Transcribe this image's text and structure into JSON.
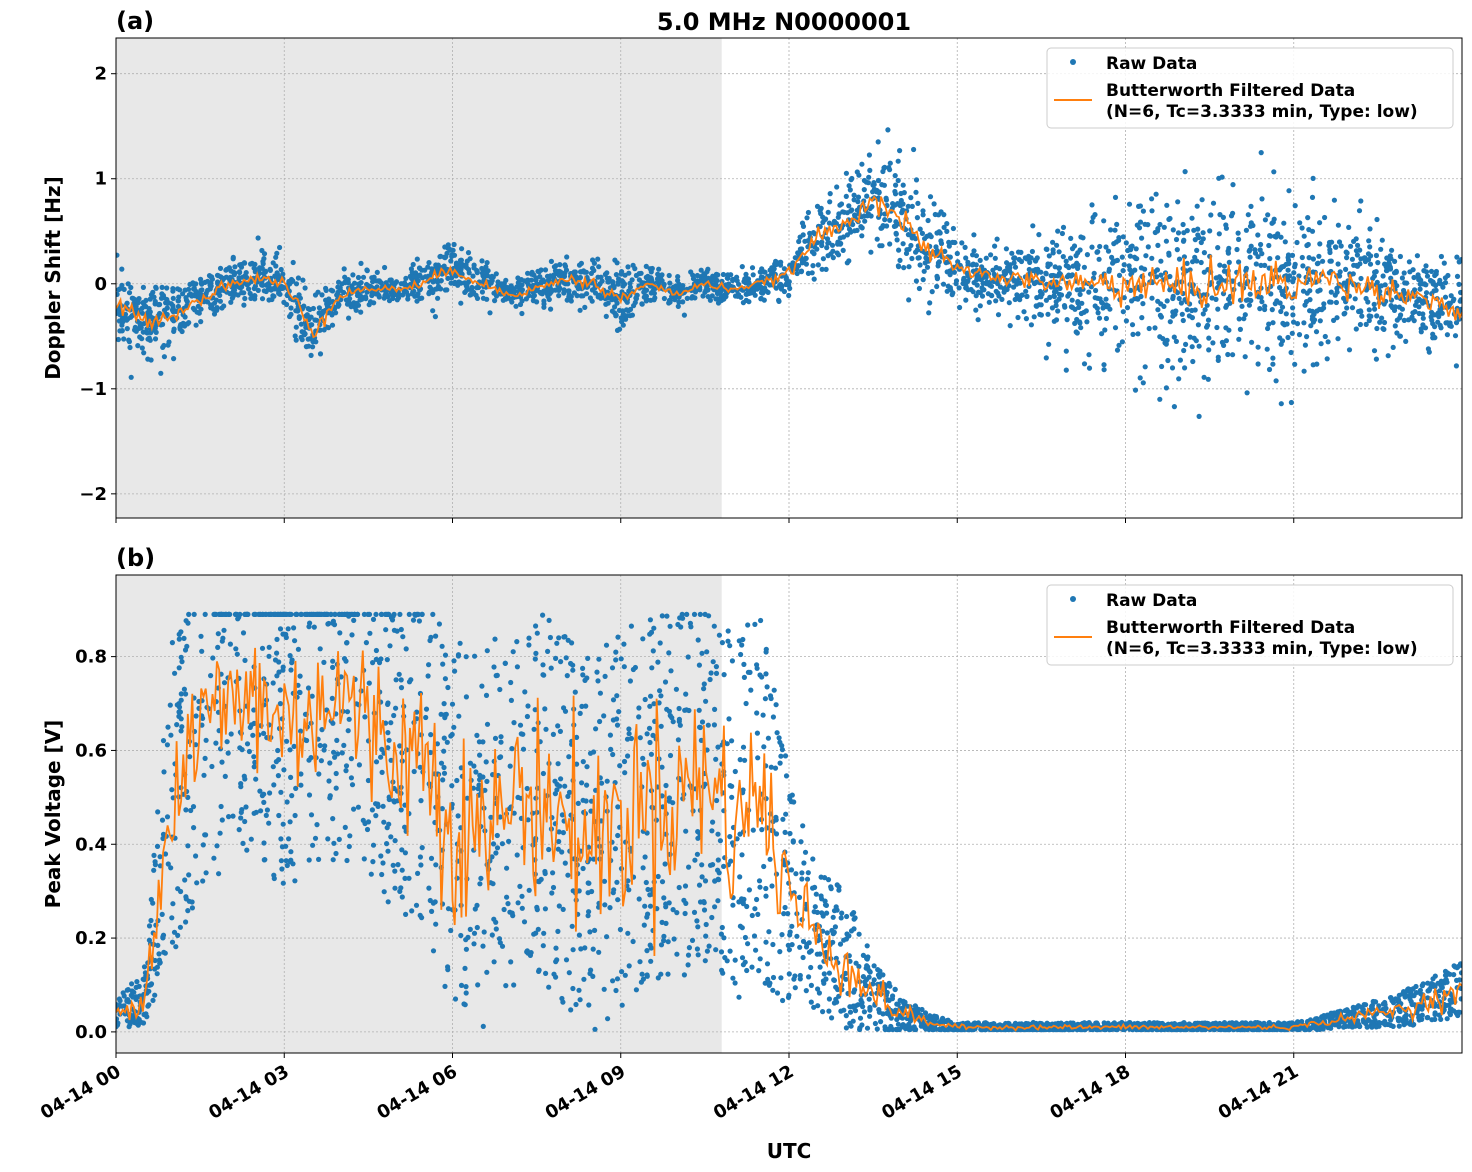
{
  "title": "5.0 MHz N0000001",
  "chart_data": [
    {
      "type": "scatter",
      "panel_label": "(a)",
      "ylabel": "Doppler Shift [Hz]",
      "xlabel": "",
      "ylim": [
        -2.23,
        2.34
      ],
      "yticks": [
        2,
        1,
        0,
        -1,
        -2
      ],
      "ytick_labels": [
        "2",
        "1",
        "0",
        "−1",
        "−2"
      ],
      "xlim_hours": [
        0,
        24
      ],
      "shaded_until_hours": 10.8,
      "grid": true,
      "legend": {
        "position": "top-right",
        "entries": [
          "Raw Data",
          "Butterworth Filtered Data",
          "(N=6, Tc=3.3333 min, Type: low)"
        ]
      },
      "filtered_hours_step": 0.5,
      "filtered": [
        -0.2,
        -0.35,
        -0.3,
        -0.15,
        0.0,
        0.05,
        0.0,
        -0.45,
        -0.1,
        -0.05,
        -0.05,
        0.0,
        0.15,
        0.0,
        -0.1,
        -0.05,
        0.05,
        0.0,
        -0.15,
        0.0,
        -0.1,
        0.0,
        -0.05,
        0.0,
        0.1,
        0.45,
        0.55,
        0.85,
        0.6,
        0.3,
        0.15,
        0.08,
        0.05,
        0.02,
        0.0,
        0.0,
        0.0,
        0.0,
        -0.05,
        0.0,
        0.0,
        0.0,
        0.0,
        0.05,
        0.0,
        -0.05,
        -0.1,
        -0.15,
        -0.3
      ],
      "raw_spread": [
        0.35,
        0.35,
        0.3,
        0.25,
        0.2,
        0.25,
        0.3,
        0.4,
        0.2,
        0.15,
        0.15,
        0.2,
        0.25,
        0.2,
        0.15,
        0.2,
        0.2,
        0.25,
        0.3,
        0.15,
        0.15,
        0.15,
        0.15,
        0.15,
        0.2,
        0.3,
        0.4,
        0.45,
        0.5,
        0.4,
        0.3,
        0.3,
        0.3,
        0.4,
        0.6,
        0.7,
        0.8,
        0.9,
        0.95,
        0.95,
        0.9,
        0.9,
        0.85,
        0.7,
        0.6,
        0.5,
        0.45,
        0.45,
        0.5
      ],
      "series_colors": {
        "raw": "#1f77b4",
        "filtered": "#ff7f0e"
      }
    },
    {
      "type": "scatter",
      "panel_label": "(b)",
      "ylabel": "Peak Voltage [V]",
      "xlabel": "UTC",
      "ylim": [
        -0.045,
        0.974
      ],
      "yticks": [
        0.8,
        0.6,
        0.4,
        0.2,
        0.0
      ],
      "ytick_labels": [
        "0.8",
        "0.6",
        "0.4",
        "0.2",
        "0.0"
      ],
      "xlim_hours": [
        0,
        24
      ],
      "xtick_hours": [
        0,
        3,
        6,
        9,
        12,
        15,
        18,
        21
      ],
      "xtick_labels": [
        "04-14 00",
        "04-14 03",
        "04-14 06",
        "04-14 09",
        "04-14 12",
        "04-14 15",
        "04-14 18",
        "04-14 21"
      ],
      "shaded_until_hours": 10.8,
      "grid": true,
      "legend": {
        "position": "top-right",
        "entries": [
          "Raw Data",
          "Butterworth Filtered Data",
          "(N=6, Tc=3.3333 min, Type: low)"
        ]
      },
      "filtered_hours_step": 0.5,
      "filtered": [
        0.04,
        0.07,
        0.5,
        0.65,
        0.7,
        0.72,
        0.65,
        0.7,
        0.72,
        0.65,
        0.6,
        0.6,
        0.45,
        0.4,
        0.5,
        0.5,
        0.45,
        0.4,
        0.45,
        0.5,
        0.5,
        0.55,
        0.45,
        0.5,
        0.3,
        0.2,
        0.15,
        0.08,
        0.04,
        0.02,
        0.01,
        0.01,
        0.01,
        0.01,
        0.01,
        0.01,
        0.01,
        0.01,
        0.01,
        0.01,
        0.01,
        0.01,
        0.01,
        0.02,
        0.03,
        0.04,
        0.05,
        0.07,
        0.09
      ],
      "raw_spread": [
        0.03,
        0.06,
        0.35,
        0.35,
        0.35,
        0.35,
        0.35,
        0.35,
        0.35,
        0.35,
        0.35,
        0.38,
        0.4,
        0.4,
        0.4,
        0.4,
        0.4,
        0.4,
        0.4,
        0.4,
        0.4,
        0.4,
        0.4,
        0.4,
        0.25,
        0.15,
        0.15,
        0.08,
        0.04,
        0.02,
        0.01,
        0.01,
        0.01,
        0.01,
        0.01,
        0.01,
        0.01,
        0.01,
        0.01,
        0.01,
        0.01,
        0.01,
        0.01,
        0.015,
        0.02,
        0.03,
        0.04,
        0.05,
        0.06
      ],
      "series_colors": {
        "raw": "#1f77b4",
        "filtered": "#ff7f0e"
      }
    }
  ]
}
